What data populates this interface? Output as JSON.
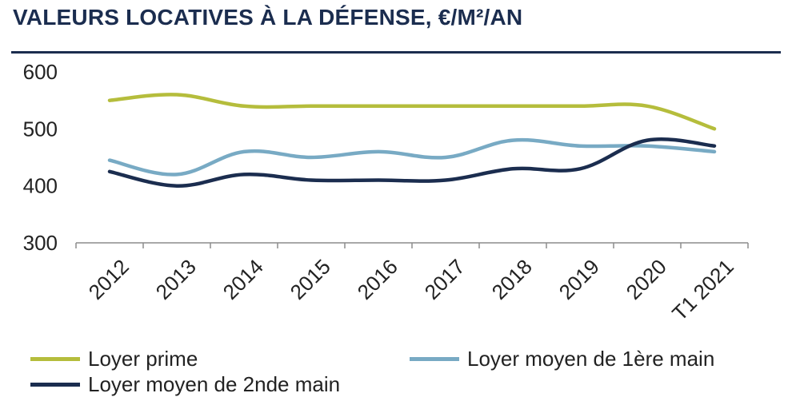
{
  "title": "VALEURS LOCATIVES À LA DÉFENSE, €/M²/AN",
  "chart_data": {
    "type": "line",
    "title": "VALEURS LOCATIVES À LA DÉFENSE, €/M²/AN",
    "xlabel": "",
    "ylabel": "",
    "categories": [
      "2012",
      "2013",
      "2014",
      "2015",
      "2016",
      "2017",
      "2018",
      "2019",
      "2020",
      "T1 2021"
    ],
    "ylim": [
      300,
      600
    ],
    "yticks": [
      "300",
      "400",
      "500",
      "600"
    ],
    "grid": false,
    "smooth": true,
    "legend_position": "bottom",
    "series": [
      {
        "name": "Loyer prime",
        "color": "#b5bd3c",
        "values": [
          550,
          560,
          540,
          540,
          540,
          540,
          540,
          540,
          540,
          500
        ]
      },
      {
        "name": "Loyer moyen de 1ère main",
        "color": "#78aac4",
        "values": [
          445,
          420,
          460,
          450,
          460,
          450,
          480,
          470,
          470,
          460
        ]
      },
      {
        "name": "Loyer moyen de 2nde main",
        "color": "#1b2d4f",
        "values": [
          425,
          400,
          420,
          410,
          410,
          410,
          430,
          430,
          480,
          470
        ]
      }
    ]
  }
}
